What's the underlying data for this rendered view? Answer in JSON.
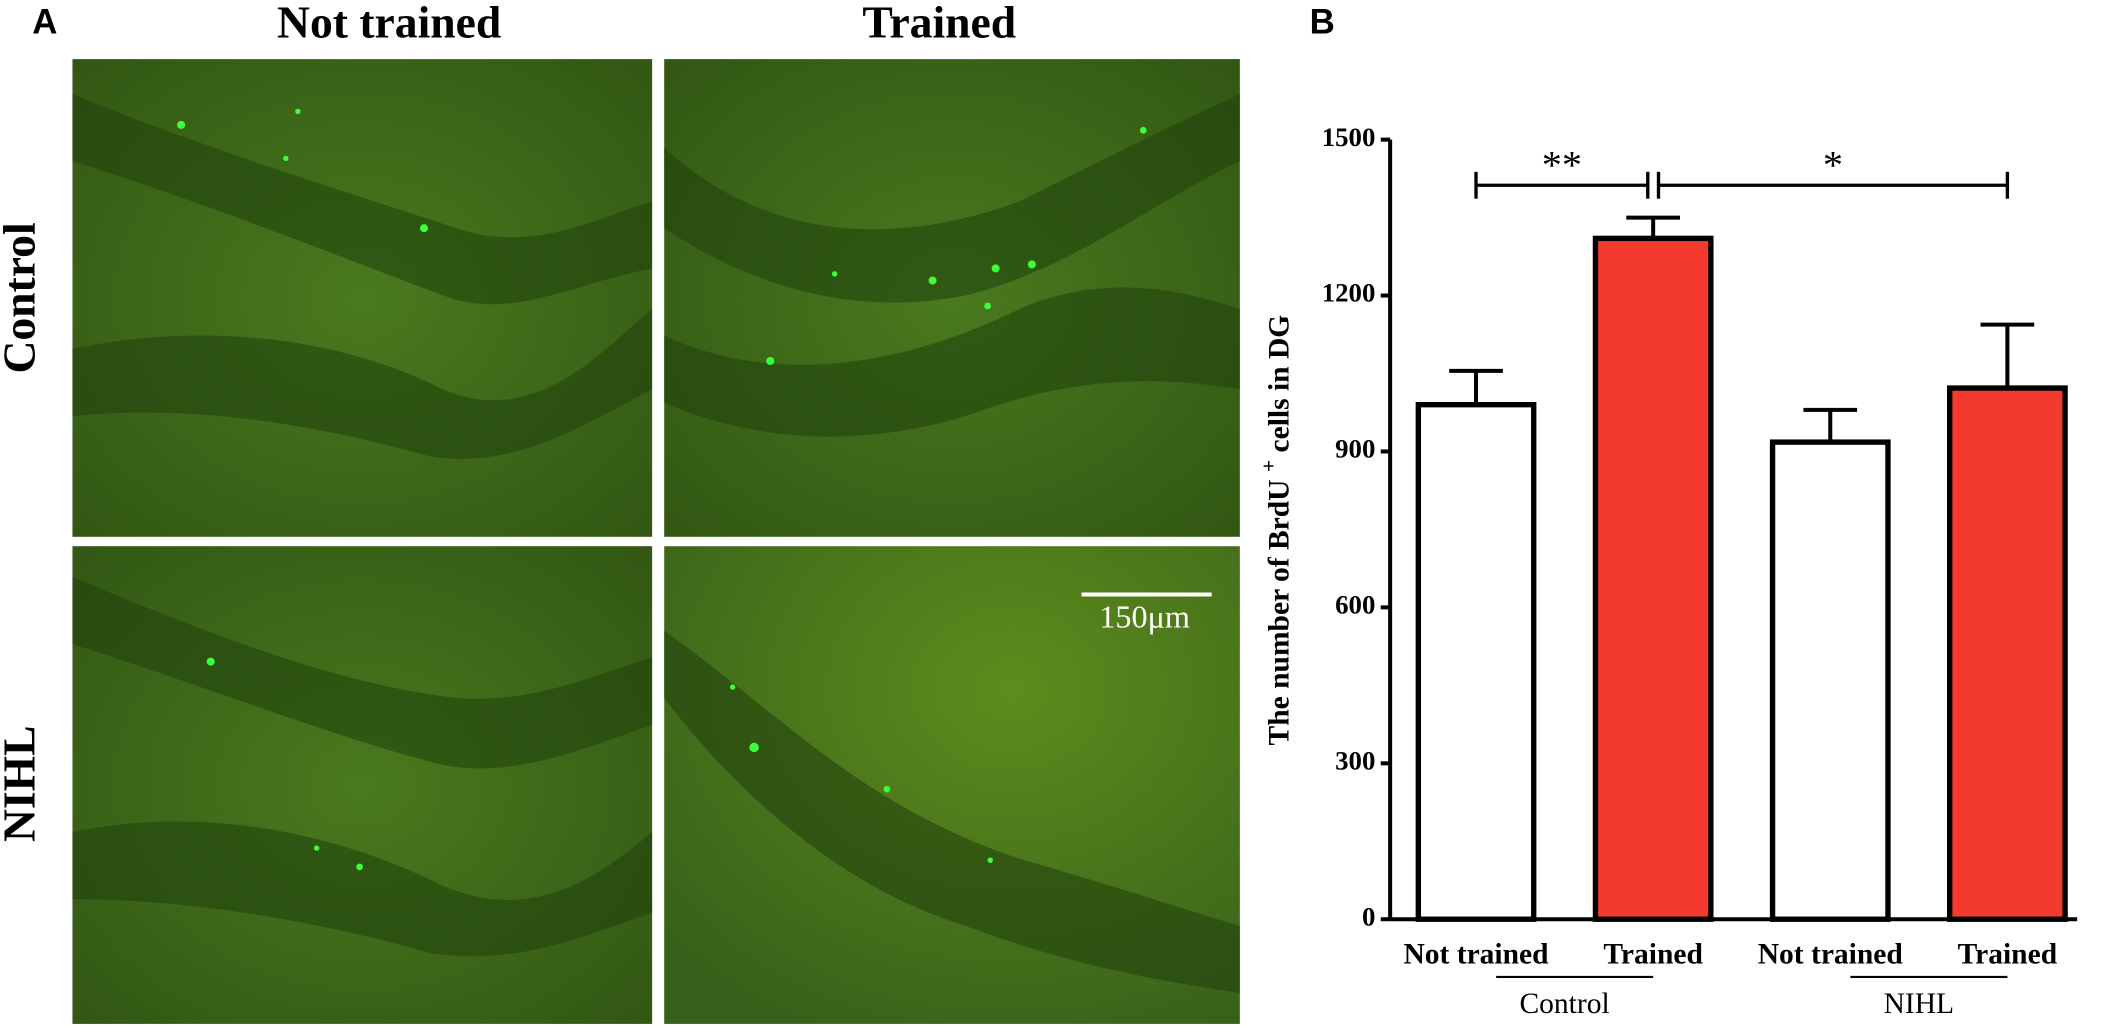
{
  "panel_a": {
    "label": "A",
    "columns": [
      "Not trained",
      "Trained"
    ],
    "rows": [
      "Control",
      "NIHL"
    ],
    "scale_bar": "150μm"
  },
  "chart_data": {
    "type": "bar",
    "panel_label": "B",
    "ylabel": [
      "The number of BrdU ",
      "+",
      " cells in DG"
    ],
    "categories": [
      "Not trained",
      "Trained",
      "Not trained",
      "Trained"
    ],
    "groups": [
      "Control",
      "NIHL"
    ],
    "values": [
      990,
      1310,
      918,
      1022
    ],
    "errors": [
      65,
      40,
      62,
      122
    ],
    "colors": [
      "#ffffff",
      "#f23a2e",
      "#ffffff",
      "#f23a2e"
    ],
    "ylim": [
      0,
      1500
    ],
    "yticks": [
      0,
      300,
      600,
      900,
      1200,
      1500
    ],
    "annotations": [
      {
        "text": "**",
        "between": [
          0,
          1
        ]
      },
      {
        "text": "*",
        "between": [
          1,
          3
        ]
      }
    ]
  }
}
